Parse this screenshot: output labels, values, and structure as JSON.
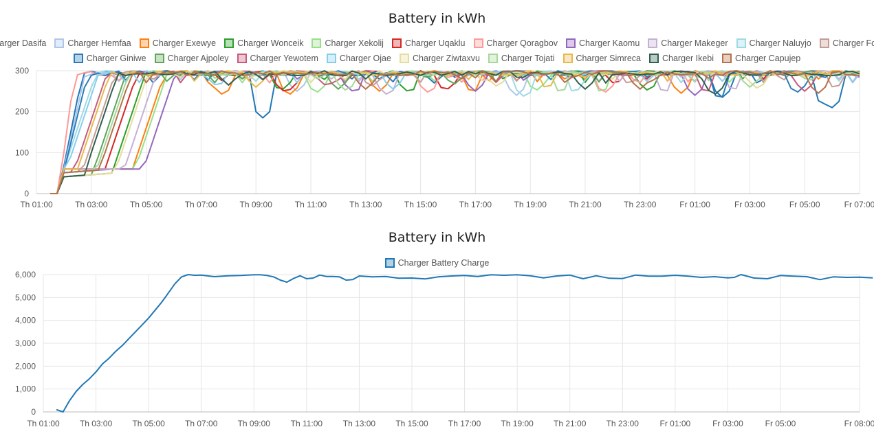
{
  "chart_data": [
    {
      "type": "line",
      "title": "Battery in kWh",
      "x_ticks": [
        "Th 01:00",
        "Th 03:00",
        "Th 05:00",
        "Th 07:00",
        "Th 09:00",
        "Th 11:00",
        "Th 13:00",
        "Th 15:00",
        "Th 17:00",
        "Th 19:00",
        "Th 21:00",
        "Th 23:00",
        "Fr 01:00",
        "Fr 03:00",
        "Fr 05:00",
        "Fr 07:00"
      ],
      "y_ticks": [
        "0",
        "100",
        "200",
        "300"
      ],
      "xlim": [
        1,
        31
      ],
      "ylim": [
        0,
        300
      ],
      "grid": true,
      "legend_position": "top",
      "series": [
        {
          "name": "Charger Dasifa",
          "color": "#1f77b4",
          "start": 2.7,
          "dip": [
            [
              9.25,
              185
            ],
            [
              15.5,
              270
            ],
            [
              26.0,
              235
            ],
            [
              29.7,
              215
            ],
            [
              30.0,
              210
            ]
          ]
        },
        {
          "name": "Charger Hemfaa",
          "color": "#aec7e8",
          "start": 2.8,
          "dip": [
            [
              10.5,
              250
            ],
            [
              18.5,
              240
            ]
          ]
        },
        {
          "name": "Charger Exewye",
          "color": "#ff7f0e",
          "start": 5.7,
          "dip": [
            [
              7.8,
              240
            ],
            [
              10.2,
              240
            ],
            [
              13.5,
              250
            ],
            [
              16.9,
              245
            ],
            [
              24.5,
              245
            ]
          ]
        },
        {
          "name": "Charger Wonceik",
          "color": "#2ca02c",
          "start": 5.0,
          "dip": [
            [
              9.9,
              250
            ],
            [
              14.6,
              245
            ],
            [
              23.3,
              250
            ]
          ]
        },
        {
          "name": "Charger Xekolij",
          "color": "#98df8a",
          "start": 5.8,
          "dip": [
            [
              11.2,
              245
            ],
            [
              19.2,
              250
            ],
            [
              21.6,
              245
            ]
          ]
        },
        {
          "name": "Charger Uqaklu",
          "color": "#d62728",
          "start": 4.7,
          "dip": [
            [
              10.1,
              245
            ],
            [
              15.9,
              250
            ],
            [
              22.1,
              265
            ]
          ]
        },
        {
          "name": "Charger Qoragbov",
          "color": "#ff9896",
          "start": 2.4,
          "dip": [
            [
              15.3,
              245
            ],
            [
              21.7,
              245
            ]
          ]
        },
        {
          "name": "Charger Kaomu",
          "color": "#9467bd",
          "start": 6.1,
          "dip": [
            [
              12.6,
              245
            ],
            [
              17.0,
              250
            ],
            [
              25.0,
              240
            ]
          ]
        },
        {
          "name": "Charger Makeger",
          "color": "#c5b0d5",
          "start": 5.4,
          "dip": [
            [
              13.8,
              240
            ],
            [
              23.9,
              245
            ],
            [
              26.4,
              250
            ]
          ]
        },
        {
          "name": "Charger Naluyjo",
          "color": "#9edae5",
          "start": 3.2,
          "dip": [
            [
              18.8,
              235
            ],
            [
              20.6,
              245
            ]
          ]
        },
        {
          "name": "Charger Fogxafvi",
          "color": "#c49c94",
          "start": 3.9,
          "dip": [
            [
              13.2,
              260
            ],
            [
              22.6,
              265
            ],
            [
              30.1,
              255
            ]
          ]
        },
        {
          "name": "Charger Giniwe",
          "color": "#2b7bba",
          "start": 2.9,
          "dip": [
            [
              25.9,
              230
            ],
            [
              28.7,
              245
            ]
          ]
        },
        {
          "name": "Charger Ajpoley",
          "color": "#5fa55a",
          "start": 4.3,
          "dip": [
            [
              12.0,
              255
            ],
            [
              16.2,
              265
            ]
          ]
        },
        {
          "name": "Charger Yewotem",
          "color": "#c85a7b",
          "start": 3.6,
          "dip": [
            [
              11.6,
              260
            ],
            [
              25.4,
              245
            ],
            [
              29.0,
              250
            ]
          ]
        },
        {
          "name": "Charger Ojae",
          "color": "#87ceeb",
          "start": 3.3,
          "dip": [
            [
              7.6,
              260
            ],
            [
              14.0,
              255
            ]
          ]
        },
        {
          "name": "Charger Ziwtaxvu",
          "color": "#e6dc9c",
          "start": 5.1,
          "dip": [
            [
              17.8,
              260
            ],
            [
              27.3,
              255
            ]
          ]
        },
        {
          "name": "Charger Tojati",
          "color": "#a6d89a",
          "start": 4.4,
          "dip": [
            [
              12.3,
              250
            ],
            [
              20.1,
              245
            ],
            [
              27.0,
              260
            ]
          ]
        },
        {
          "name": "Charger Simreca",
          "color": "#e8b94a",
          "start": 3.7,
          "dip": [
            [
              9.0,
              260
            ],
            [
              19.6,
              255
            ]
          ]
        },
        {
          "name": "Charger Ikebi",
          "color": "#2f5f4f",
          "start": 4.0,
          "dip": [
            [
              8.0,
              265
            ],
            [
              21.0,
              255
            ],
            [
              25.7,
              240
            ]
          ]
        },
        {
          "name": "Charger Capujep",
          "color": "#b5714a",
          "start": 4.5,
          "dip": [
            [
              13.0,
              255
            ],
            [
              23.0,
              255
            ],
            [
              29.5,
              245
            ]
          ]
        }
      ]
    },
    {
      "type": "line",
      "title": "Battery in kWh",
      "x_ticks": [
        "Th 01:00",
        "Th 03:00",
        "Th 05:00",
        "Th 07:00",
        "Th 09:00",
        "Th 11:00",
        "Th 13:00",
        "Th 15:00",
        "Th 17:00",
        "Th 19:00",
        "Th 21:00",
        "Th 23:00",
        "Fr 01:00",
        "Fr 03:00",
        "Fr 05:00",
        "Fr 08:00"
      ],
      "y_ticks": [
        "0",
        "1,000",
        "2,000",
        "3,000",
        "4,000",
        "5,000",
        "6,000"
      ],
      "grid": true,
      "legend_position": "top",
      "series": [
        {
          "name": "Charger Battery Charge",
          "color": "#1f77b4",
          "x": [
            1.5,
            1.75,
            2.0,
            2.25,
            2.5,
            2.75,
            3.0,
            3.25,
            3.5,
            3.75,
            4.0,
            4.25,
            4.5,
            4.75,
            5.0,
            5.25,
            5.5,
            5.75,
            6.0,
            6.25,
            6.5,
            6.75,
            7.0,
            7.5,
            8.0,
            8.5,
            9.0,
            9.25,
            9.5,
            9.75,
            10.0,
            10.25,
            10.5,
            10.75,
            11.0,
            11.25,
            11.5,
            11.75,
            12.0,
            12.25,
            12.5,
            12.75,
            13.0,
            13.5,
            14.0,
            14.5,
            15.0,
            15.5,
            16.0,
            16.5,
            17.0,
            17.5,
            18.0,
            18.5,
            19.0,
            19.5,
            20.0,
            20.5,
            21.0,
            21.5,
            22.0,
            22.5,
            23.0,
            23.5,
            24.0,
            24.5,
            25.0,
            25.5,
            26.0,
            26.5,
            27.0,
            27.25,
            27.5,
            28.0,
            28.5,
            29.0,
            29.5,
            30.0,
            30.5,
            31.0,
            31.5,
            32.0,
            32.5
          ],
          "y": [
            100,
            0,
            500,
            900,
            1200,
            1450,
            1750,
            2100,
            2350,
            2650,
            2900,
            3200,
            3500,
            3800,
            4100,
            4450,
            4800,
            5200,
            5600,
            5900,
            6000,
            5970,
            5980,
            5910,
            5950,
            5960,
            5990,
            5990,
            5960,
            5900,
            5760,
            5670,
            5830,
            5950,
            5820,
            5850,
            5980,
            5920,
            5920,
            5900,
            5760,
            5780,
            5940,
            5900,
            5920,
            5840,
            5850,
            5810,
            5900,
            5940,
            5960,
            5920,
            5990,
            5970,
            5990,
            5950,
            5860,
            5940,
            5980,
            5820,
            5950,
            5840,
            5830,
            5980,
            5930,
            5930,
            5970,
            5930,
            5880,
            5910,
            5860,
            5880,
            6000,
            5850,
            5820,
            5960,
            5930,
            5910,
            5780,
            5900,
            5880,
            5890,
            5860
          ]
        }
      ]
    }
  ]
}
